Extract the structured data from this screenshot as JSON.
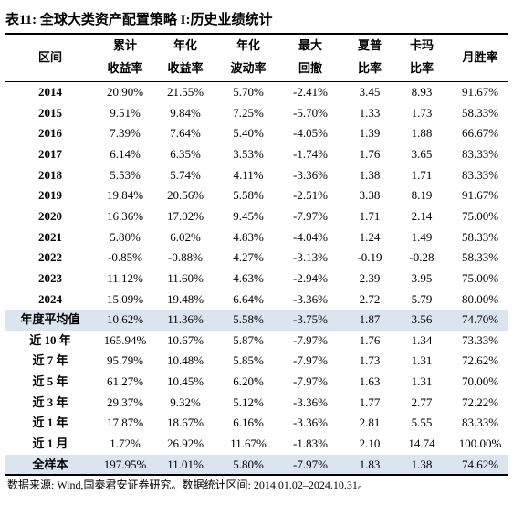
{
  "title": "表11:  全球大类资产配置策略 I:历史业绩统计",
  "table": {
    "header": [
      [
        "区间"
      ],
      [
        "累计",
        "收益率"
      ],
      [
        "年化",
        "收益率"
      ],
      [
        "年化",
        "波动率"
      ],
      [
        "最大",
        "回撤"
      ],
      [
        "夏普",
        "比率"
      ],
      [
        "卡玛",
        "比率"
      ],
      [
        "月胜率"
      ]
    ],
    "years": [
      [
        "2014",
        "20.90%",
        "21.55%",
        "5.70%",
        "-2.41%",
        "3.45",
        "8.93",
        "91.67%"
      ],
      [
        "2015",
        "9.51%",
        "9.84%",
        "7.25%",
        "-5.70%",
        "1.33",
        "1.73",
        "58.33%"
      ],
      [
        "2016",
        "7.39%",
        "7.64%",
        "5.40%",
        "-4.05%",
        "1.39",
        "1.88",
        "66.67%"
      ],
      [
        "2017",
        "6.14%",
        "6.35%",
        "3.53%",
        "-1.74%",
        "1.76",
        "3.65",
        "83.33%"
      ],
      [
        "2018",
        "5.53%",
        "5.74%",
        "4.11%",
        "-3.36%",
        "1.38",
        "1.71",
        "83.33%"
      ],
      [
        "2019",
        "19.84%",
        "20.56%",
        "5.58%",
        "-2.51%",
        "3.38",
        "8.19",
        "91.67%"
      ],
      [
        "2020",
        "16.36%",
        "17.02%",
        "9.45%",
        "-7.97%",
        "1.71",
        "2.14",
        "75.00%"
      ],
      [
        "2021",
        "5.80%",
        "6.02%",
        "4.83%",
        "-4.04%",
        "1.24",
        "1.49",
        "58.33%"
      ],
      [
        "2022",
        "-0.85%",
        "-0.88%",
        "4.27%",
        "-3.13%",
        "-0.19",
        "-0.28",
        "58.33%"
      ],
      [
        "2023",
        "11.12%",
        "11.60%",
        "4.63%",
        "-2.94%",
        "2.39",
        "3.95",
        "75.00%"
      ],
      [
        "2024",
        "15.09%",
        "19.48%",
        "6.64%",
        "-3.36%",
        "2.72",
        "5.79",
        "80.00%"
      ]
    ],
    "average": [
      [
        "年度平均值",
        "10.62%",
        "11.36%",
        "5.58%",
        "-3.75%",
        "1.87",
        "3.56",
        "74.70%"
      ]
    ],
    "periods": [
      [
        "近 10 年",
        "165.94%",
        "10.67%",
        "5.87%",
        "-7.97%",
        "1.76",
        "1.34",
        "73.33%"
      ],
      [
        "近 7 年",
        "95.79%",
        "10.48%",
        "5.85%",
        "-7.97%",
        "1.73",
        "1.31",
        "72.62%"
      ],
      [
        "近 5 年",
        "61.27%",
        "10.45%",
        "6.20%",
        "-7.97%",
        "1.63",
        "1.31",
        "70.00%"
      ],
      [
        "近 3 年",
        "29.37%",
        "9.32%",
        "5.12%",
        "-3.36%",
        "1.77",
        "2.77",
        "72.22%"
      ],
      [
        "近 1 年",
        "17.87%",
        "18.67%",
        "6.16%",
        "-3.36%",
        "2.81",
        "5.55",
        "83.33%"
      ],
      [
        "近 1 月",
        "1.72%",
        "26.92%",
        "11.67%",
        "-1.83%",
        "2.10",
        "14.74",
        "100.00%"
      ]
    ],
    "total": [
      [
        "全样本",
        "197.95%",
        "11.01%",
        "5.80%",
        "-7.97%",
        "1.83",
        "1.38",
        "74.62%"
      ]
    ]
  },
  "source": "数据来源:  Wind,国泰君安证券研究。数据统计区间:  2014.01.02–2024.10.31。"
}
